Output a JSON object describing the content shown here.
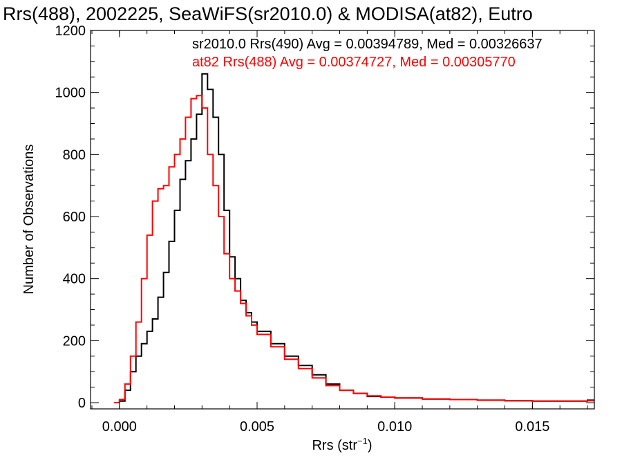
{
  "chart_data": {
    "type": "line",
    "title": "Rrs(488), 2002225, SeaWiFS(sr2010.0) & MODISA(at82), Eutro",
    "xlabel_base": "Rrs (str",
    "xlabel_sup": "−1",
    "xlabel_end": ")",
    "ylabel": "Number of Observations",
    "xlim": [
      -0.00105,
      0.01725
    ],
    "ylim": [
      -20,
      1200
    ],
    "xticks": [
      0.0,
      0.005,
      0.01,
      0.015
    ],
    "xtick_labels": [
      "0.000",
      "0.005",
      "0.010",
      "0.015"
    ],
    "yticks": [
      0,
      200,
      400,
      600,
      800,
      1000,
      1200
    ],
    "ytick_labels": [
      "0",
      "200",
      "400",
      "600",
      "800",
      "1000",
      "1200"
    ],
    "grid": false,
    "style": "step-histogram",
    "series": [
      {
        "name": "sr2010.0",
        "color": "#000000",
        "legend": "sr2010.0 Rrs(490) Avg = 0.00394789, Med = 0.00326637",
        "x": [
          -0.0002,
          0.0,
          0.0002,
          0.0004,
          0.0006,
          0.0008,
          0.001,
          0.0012,
          0.0014,
          0.0016,
          0.0018,
          0.002,
          0.0022,
          0.0024,
          0.0026,
          0.0028,
          0.003,
          0.0032,
          0.0034,
          0.0036,
          0.0038,
          0.004,
          0.0042,
          0.0044,
          0.0046,
          0.0048,
          0.005,
          0.0055,
          0.006,
          0.0065,
          0.007,
          0.0075,
          0.008,
          0.0085,
          0.009,
          0.0095,
          0.01,
          0.011,
          0.012,
          0.013,
          0.014,
          0.015,
          0.016,
          0.017
        ],
        "y": [
          0,
          5,
          40,
          100,
          150,
          190,
          230,
          270,
          340,
          420,
          520,
          620,
          720,
          780,
          850,
          930,
          1060,
          1010,
          920,
          800,
          620,
          470,
          400,
          330,
          290,
          260,
          230,
          190,
          150,
          120,
          90,
          60,
          40,
          30,
          20,
          18,
          15,
          12,
          10,
          8,
          6,
          5,
          5,
          8
        ]
      },
      {
        "name": "at82",
        "color": "#ff0000",
        "legend": "at82 Rrs(488) Avg = 0.00374727, Med = 0.00305770",
        "x": [
          -0.0002,
          0.0,
          0.0002,
          0.0004,
          0.0006,
          0.0008,
          0.001,
          0.0012,
          0.0014,
          0.0016,
          0.0018,
          0.002,
          0.0022,
          0.0024,
          0.0026,
          0.0028,
          0.003,
          0.0032,
          0.0034,
          0.0036,
          0.0038,
          0.004,
          0.0042,
          0.0044,
          0.0046,
          0.0048,
          0.005,
          0.0055,
          0.006,
          0.0065,
          0.007,
          0.0075,
          0.008,
          0.0085,
          0.009,
          0.0095,
          0.01,
          0.011,
          0.012,
          0.013,
          0.014,
          0.015,
          0.016,
          0.017
        ],
        "y": [
          0,
          10,
          60,
          150,
          260,
          400,
          540,
          650,
          690,
          700,
          760,
          800,
          850,
          920,
          980,
          990,
          950,
          800,
          700,
          600,
          480,
          400,
          360,
          320,
          280,
          250,
          220,
          180,
          140,
          110,
          80,
          55,
          40,
          30,
          22,
          18,
          15,
          12,
          10,
          8,
          6,
          5,
          5,
          6
        ]
      }
    ]
  }
}
